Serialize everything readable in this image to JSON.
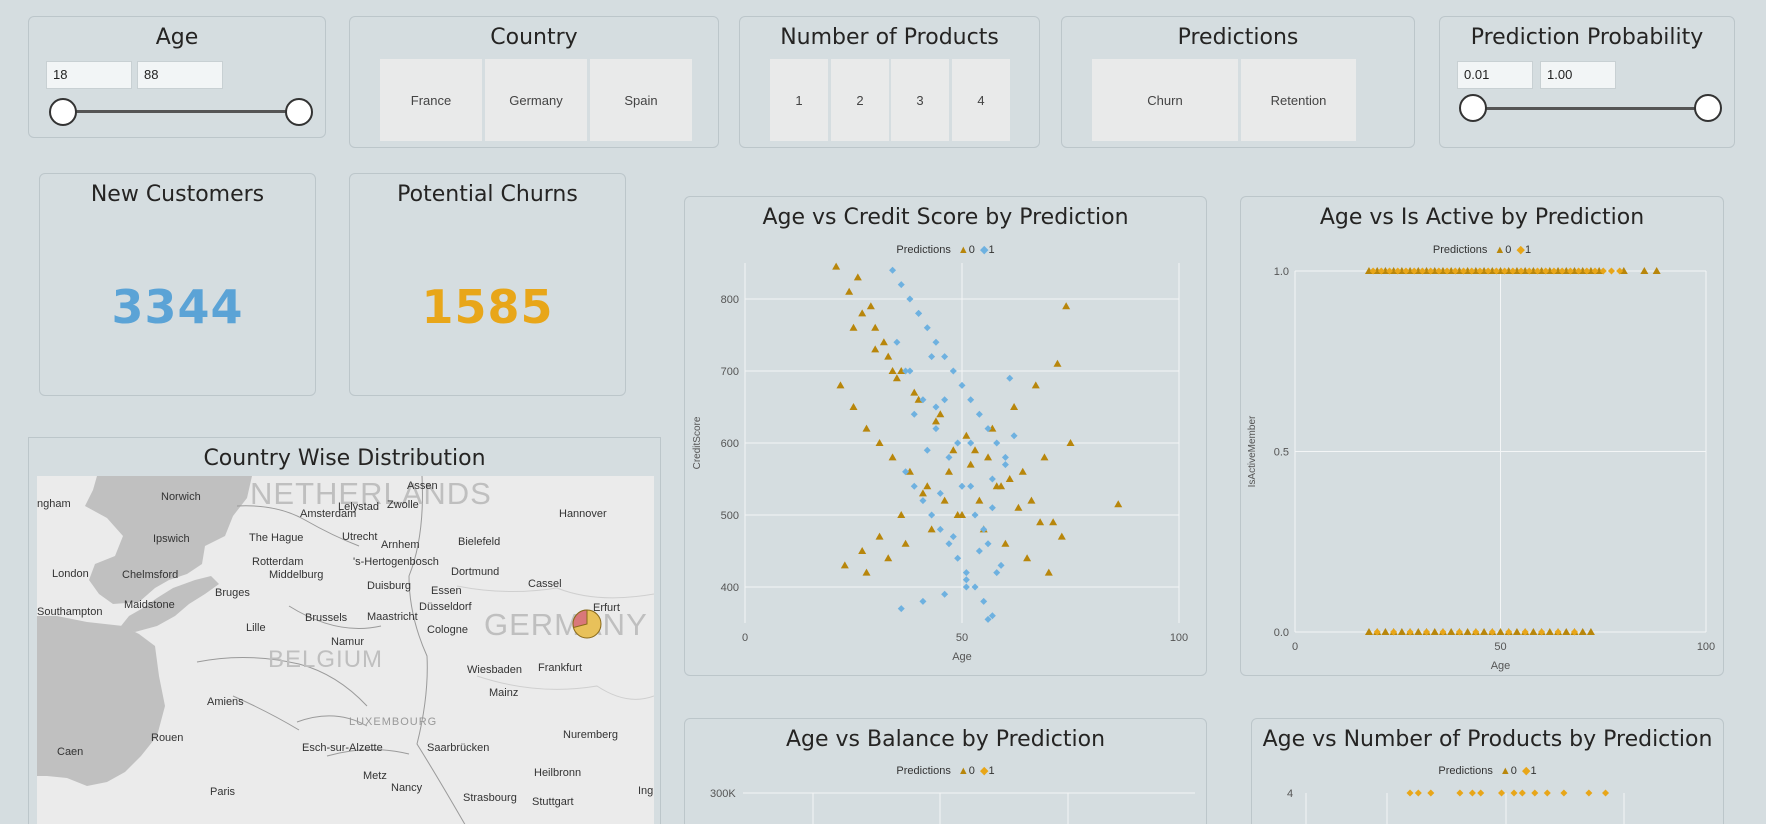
{
  "slicers": {
    "age": {
      "title": "Age",
      "min": "18",
      "max": "88"
    },
    "country": {
      "title": "Country",
      "options": [
        "France",
        "Germany",
        "Spain"
      ]
    },
    "products": {
      "title": "Number of Products",
      "options": [
        "1",
        "2",
        "3",
        "4"
      ]
    },
    "predictions": {
      "title": "Predictions",
      "options": [
        "Churn",
        "Retention"
      ]
    },
    "probability": {
      "title": "Prediction Probability",
      "min": "0.01",
      "max": "1.00"
    }
  },
  "kpis": {
    "new_customers": {
      "title": "New Customers",
      "value": "3344",
      "color": "#5ba3d6"
    },
    "potential_churns": {
      "title": "Potential Churns",
      "value": "1585",
      "color": "#e8a619"
    }
  },
  "map": {
    "title": "Country Wise Distribution",
    "regions": [
      "NETHERLANDS",
      "GERMANY",
      "BELGIUM",
      "LUXEMBOURG"
    ],
    "cities": [
      "ngham",
      "Norwich",
      "Assen",
      "Amsterdam",
      "Lelystad",
      "Zwolle",
      "Hannover",
      "The Hague",
      "Ipswich",
      "Utrecht",
      "Arnhem",
      "Bielefeld",
      "London",
      "Chelmsford",
      "Rotterdam",
      "'s-Hertogenbosch",
      "Middelburg",
      "Dortmund",
      "Bruges",
      "Duisburg",
      "Essen",
      "Cassel",
      "Maidstone",
      "Düsseldorf",
      "Erfurt",
      "Southampton",
      "Brussels",
      "Maastricht",
      "Cologne",
      "Lille",
      "Namur",
      "Wiesbaden",
      "Frankfurt",
      "Amiens",
      "Mainz",
      "Rouen",
      "Esch-sur-Alzette",
      "Saarbrücken",
      "Nuremberg",
      "Caen",
      "Metz",
      "Heilbronn",
      "Paris",
      "Nancy",
      "Strasbourg",
      "Stuttgart",
      "Ing"
    ]
  },
  "legend": {
    "label": "Predictions",
    "items": [
      "0",
      "1"
    ]
  },
  "colors": {
    "class0": "#b8860b",
    "class1_credit": "#6eb1e0",
    "class1_gold": "#e8a619"
  },
  "chart_data": [
    {
      "title": "Age vs Credit Score by Prediction",
      "type": "scatter",
      "xlabel": "Age",
      "ylabel": "CreditScore",
      "xlim": [
        0,
        100
      ],
      "ylim": [
        350,
        850
      ],
      "xticks": [
        0,
        50,
        100
      ],
      "yticks": [
        400,
        500,
        600,
        700,
        800
      ],
      "series": [
        {
          "name": "0",
          "marker": "triangle",
          "x": [
            21,
            24,
            27,
            30,
            33,
            36,
            22,
            25,
            28,
            31,
            34,
            38,
            42,
            46,
            50,
            55,
            60,
            65,
            70,
            75,
            86,
            26,
            29,
            32,
            35,
            40,
            44,
            48,
            52,
            58,
            63,
            68,
            73,
            23,
            27,
            31,
            36,
            41,
            47,
            53,
            57,
            62,
            67,
            72,
            25,
            30,
            34,
            39,
            45,
            51,
            56,
            61,
            66,
            71,
            28,
            33,
            37,
            43,
            49,
            54,
            59,
            64,
            69,
            74
          ],
          "y": [
            845,
            810,
            780,
            760,
            720,
            700,
            680,
            650,
            620,
            600,
            580,
            560,
            540,
            520,
            500,
            480,
            460,
            440,
            420,
            600,
            515,
            830,
            790,
            740,
            690,
            660,
            630,
            590,
            570,
            540,
            510,
            490,
            470,
            430,
            450,
            470,
            500,
            530,
            560,
            590,
            620,
            650,
            680,
            710,
            760,
            730,
            700,
            670,
            640,
            610,
            580,
            550,
            520,
            490,
            420,
            440,
            460,
            480,
            500,
            520,
            540,
            560,
            580,
            790
          ]
        },
        {
          "name": "1",
          "marker": "diamond",
          "x": [
            34,
            36,
            38,
            40,
            42,
            44,
            46,
            48,
            50,
            52,
            54,
            56,
            58,
            60,
            37,
            39,
            41,
            43,
            45,
            47,
            49,
            51,
            53,
            55,
            57,
            35,
            38,
            41,
            44,
            47,
            50,
            53,
            56,
            59,
            62,
            40,
            43,
            46,
            49,
            52,
            55,
            58,
            61,
            39,
            42,
            45,
            48,
            51,
            54,
            57,
            60,
            36,
            41,
            46,
            51,
            56,
            37,
            44,
            52,
            57
          ],
          "y": [
            840,
            820,
            800,
            780,
            760,
            740,
            720,
            700,
            680,
            660,
            640,
            620,
            600,
            580,
            560,
            540,
            520,
            500,
            480,
            460,
            440,
            420,
            400,
            380,
            360,
            740,
            700,
            660,
            620,
            580,
            540,
            500,
            460,
            430,
            610,
            780,
            720,
            660,
            600,
            540,
            480,
            420,
            690,
            640,
            590,
            530,
            470,
            410,
            450,
            510,
            570,
            370,
            380,
            390,
            400,
            355,
            700,
            650,
            600,
            550
          ]
        }
      ]
    },
    {
      "title": "Age vs Is Active by Prediction",
      "type": "scatter",
      "xlabel": "Age",
      "ylabel": "IsActiveMember",
      "xlim": [
        0,
        100
      ],
      "ylim": [
        0,
        1
      ],
      "xticks": [
        0,
        50,
        100
      ],
      "yticks": [
        "0.0",
        "0.5",
        "1.0"
      ],
      "series": [
        {
          "name": "0",
          "marker": "triangle",
          "x": [
            18,
            20,
            22,
            24,
            26,
            28,
            30,
            32,
            34,
            36,
            38,
            40,
            42,
            44,
            46,
            48,
            50,
            52,
            54,
            56,
            58,
            60,
            62,
            64,
            66,
            68,
            70,
            72,
            74,
            80,
            85,
            88,
            18,
            20,
            22,
            24,
            26,
            28,
            30,
            32,
            34,
            36,
            38,
            40,
            42,
            44,
            46,
            48,
            50,
            52,
            54,
            56,
            58,
            60,
            62,
            64,
            66,
            68,
            70,
            72
          ],
          "y": [
            1,
            1,
            1,
            1,
            1,
            1,
            1,
            1,
            1,
            1,
            1,
            1,
            1,
            1,
            1,
            1,
            1,
            1,
            1,
            1,
            1,
            1,
            1,
            1,
            1,
            1,
            1,
            1,
            1,
            1,
            1,
            1,
            0,
            0,
            0,
            0,
            0,
            0,
            0,
            0,
            0,
            0,
            0,
            0,
            0,
            0,
            0,
            0,
            0,
            0,
            0,
            0,
            0,
            0,
            0,
            0,
            0,
            0,
            0,
            0
          ]
        },
        {
          "name": "1",
          "marker": "diamond",
          "x": [
            19,
            21,
            23,
            25,
            27,
            29,
            31,
            33,
            35,
            37,
            39,
            41,
            43,
            45,
            47,
            49,
            51,
            53,
            55,
            57,
            59,
            61,
            63,
            65,
            67,
            69,
            71,
            73,
            75,
            77,
            79,
            20,
            24,
            28,
            32,
            36,
            40,
            44,
            48,
            52,
            56,
            60,
            64,
            68
          ],
          "y": [
            1,
            1,
            1,
            1,
            1,
            1,
            1,
            1,
            1,
            1,
            1,
            1,
            1,
            1,
            1,
            1,
            1,
            1,
            1,
            1,
            1,
            1,
            1,
            1,
            1,
            1,
            1,
            1,
            1,
            1,
            1,
            0,
            0,
            0,
            0,
            0,
            0,
            0,
            0,
            0,
            0,
            0,
            0,
            0
          ]
        }
      ]
    },
    {
      "title": "Age vs Balance by Prediction",
      "type": "scatter",
      "xlabel": "",
      "ylabel": "",
      "ytick_visible": "300K",
      "series": [
        {
          "name": "0"
        },
        {
          "name": "1"
        }
      ]
    },
    {
      "title": "Age vs  Number of Products by Prediction",
      "type": "scatter",
      "xlabel": "",
      "ylabel": "",
      "ytick_visible": "4",
      "series": [
        {
          "name": "0",
          "marker": "triangle",
          "x": [],
          "y": []
        },
        {
          "name": "1",
          "marker": "diamond",
          "x": [
            25,
            27,
            30,
            37,
            40,
            42,
            47,
            50,
            52,
            55,
            58,
            62,
            68,
            72
          ],
          "y": [
            4,
            4,
            4,
            4,
            4,
            4,
            4,
            4,
            4,
            4,
            4,
            4,
            4,
            4
          ]
        }
      ]
    }
  ]
}
